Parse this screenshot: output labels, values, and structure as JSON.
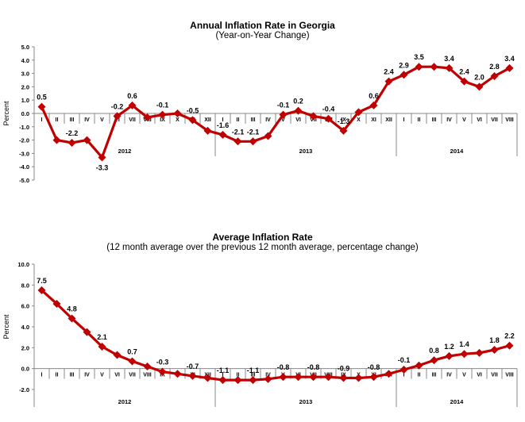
{
  "chart_data": [
    {
      "type": "line",
      "title": "Annual Inflation Rate in Georgia",
      "subtitle": "(Year-on-Year Change)",
      "ylabel": "Percent",
      "ylim": [
        -5,
        5
      ],
      "ytick_labels": [
        "5.0",
        "4.0",
        "3.0",
        "2.0",
        "1.0",
        "0.0",
        "-1.0",
        "-2.0",
        "-3.0",
        "-4.0",
        "-5.0"
      ],
      "categories": [
        "I",
        "II",
        "III",
        "IV",
        "V",
        "VI",
        "VII",
        "VIII",
        "IX",
        "X",
        "XI",
        "XII",
        "I",
        "II",
        "III",
        "IV",
        "V",
        "VI",
        "VII",
        "VIII",
        "IX",
        "X",
        "XI",
        "XII",
        "I",
        "II",
        "III",
        "IV",
        "V",
        "VI",
        "VII",
        "VIII"
      ],
      "years": [
        "2012",
        "2013",
        "2014"
      ],
      "values": [
        0.5,
        -2.0,
        -2.2,
        -2.0,
        -3.3,
        -0.2,
        0.6,
        -0.3,
        -0.1,
        0.0,
        -0.5,
        -1.3,
        -1.6,
        -2.1,
        -2.1,
        -1.7,
        -0.1,
        0.2,
        -0.2,
        -0.4,
        -1.3,
        0.1,
        0.6,
        2.4,
        2.9,
        3.5,
        3.5,
        3.4,
        2.4,
        2.0,
        2.8,
        3.4
      ],
      "data_labels": [
        "0.5",
        "",
        "-2.2",
        "",
        "-3.3",
        "-0.2",
        "0.6",
        "",
        "-0.1",
        "",
        "-0.5",
        "",
        "-1.6",
        "-2.1",
        "-2.1",
        "",
        "-0.1",
        "0.2",
        "",
        "-0.4",
        "-1.3",
        "",
        "0.6",
        "2.4",
        "2.9",
        "3.5",
        "",
        "3.4",
        "2.4",
        "2.0",
        "2.8",
        "3.4"
      ],
      "color": "#c00000"
    },
    {
      "type": "line",
      "title": "Average Inflation Rate",
      "subtitle": "(12 month average over the previous 12 month average, percentage change)",
      "ylabel": "Percent",
      "ylim": [
        -2,
        10
      ],
      "ytick_labels": [
        "10.0",
        "8.0",
        "6.0",
        "4.0",
        "2.0",
        "0.0",
        "-2.0"
      ],
      "categories": [
        "I",
        "II",
        "III",
        "IV",
        "V",
        "VI",
        "VII",
        "VIII",
        "IX",
        "X",
        "XI",
        "XII",
        "I",
        "II",
        "III",
        "IV",
        "V",
        "VI",
        "VII",
        "VIII",
        "IX",
        "X",
        "XI",
        "XII",
        "I",
        "II",
        "III",
        "IV",
        "V",
        "VI",
        "VII",
        "VIII"
      ],
      "years": [
        "2012",
        "2013",
        "2014"
      ],
      "values": [
        7.5,
        6.2,
        4.8,
        3.5,
        2.1,
        1.3,
        0.7,
        0.2,
        -0.3,
        -0.5,
        -0.7,
        -0.9,
        -1.1,
        -1.1,
        -1.1,
        -1.0,
        -0.8,
        -0.8,
        -0.8,
        -0.8,
        -0.9,
        -0.9,
        -0.8,
        -0.5,
        -0.1,
        0.3,
        0.8,
        1.2,
        1.4,
        1.5,
        1.8,
        2.2
      ],
      "data_labels": [
        "7.5",
        "",
        "4.8",
        "",
        "2.1",
        "",
        "0.7",
        "",
        "-0.3",
        "",
        "-0.7",
        "",
        "-1.1",
        "",
        "-1.1",
        "",
        "-0.8",
        "",
        "-0.8",
        "",
        "-0.9",
        "",
        "-0.8",
        "",
        "-0.1",
        "",
        "0.8",
        "1.2",
        "1.4",
        "",
        "1.8",
        "2.2"
      ],
      "color": "#c00000"
    }
  ]
}
